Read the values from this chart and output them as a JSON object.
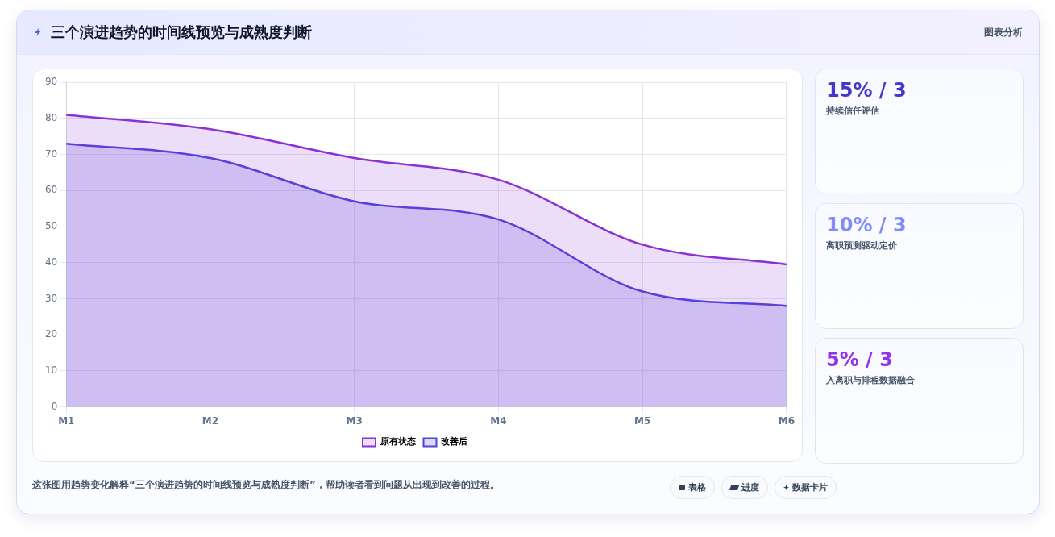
{
  "chart_data": [
    {
      "type": "area",
      "title": "三个演进趋势的时间线预览与成熟度判断",
      "categories": [
        "M1",
        "M2",
        "M3",
        "M4",
        "M5",
        "M6"
      ],
      "series": [
        {
          "name": "原有状态",
          "color": "#8b32d6",
          "values": [
            81,
            77,
            69,
            63,
            45,
            39.5
          ]
        },
        {
          "name": "改善后",
          "color": "#5043d9",
          "values": [
            73,
            69,
            57,
            52,
            32,
            28
          ]
        }
      ],
      "ylim": [
        0,
        90
      ],
      "yticks": [
        0,
        10,
        20,
        30,
        40,
        50,
        60,
        70,
        80,
        90
      ],
      "grid": true,
      "legend": "bottom",
      "annotations": [
        "图表分析",
        "这张图用趋势变化解释“三个演进趋势的时间线预览与成熟度判断”，帮助读者看到问题从出现到改善的过程。",
        "表格",
        "进度",
        "数据卡片"
      ]
    },
    {
      "type": "other",
      "annotations": [
        "15% / 3",
        "持续信任评估",
        "10% / 3",
        "离职预测驱动定价",
        "5% / 3",
        "入离职与排程数据融合"
      ]
    }
  ]
}
